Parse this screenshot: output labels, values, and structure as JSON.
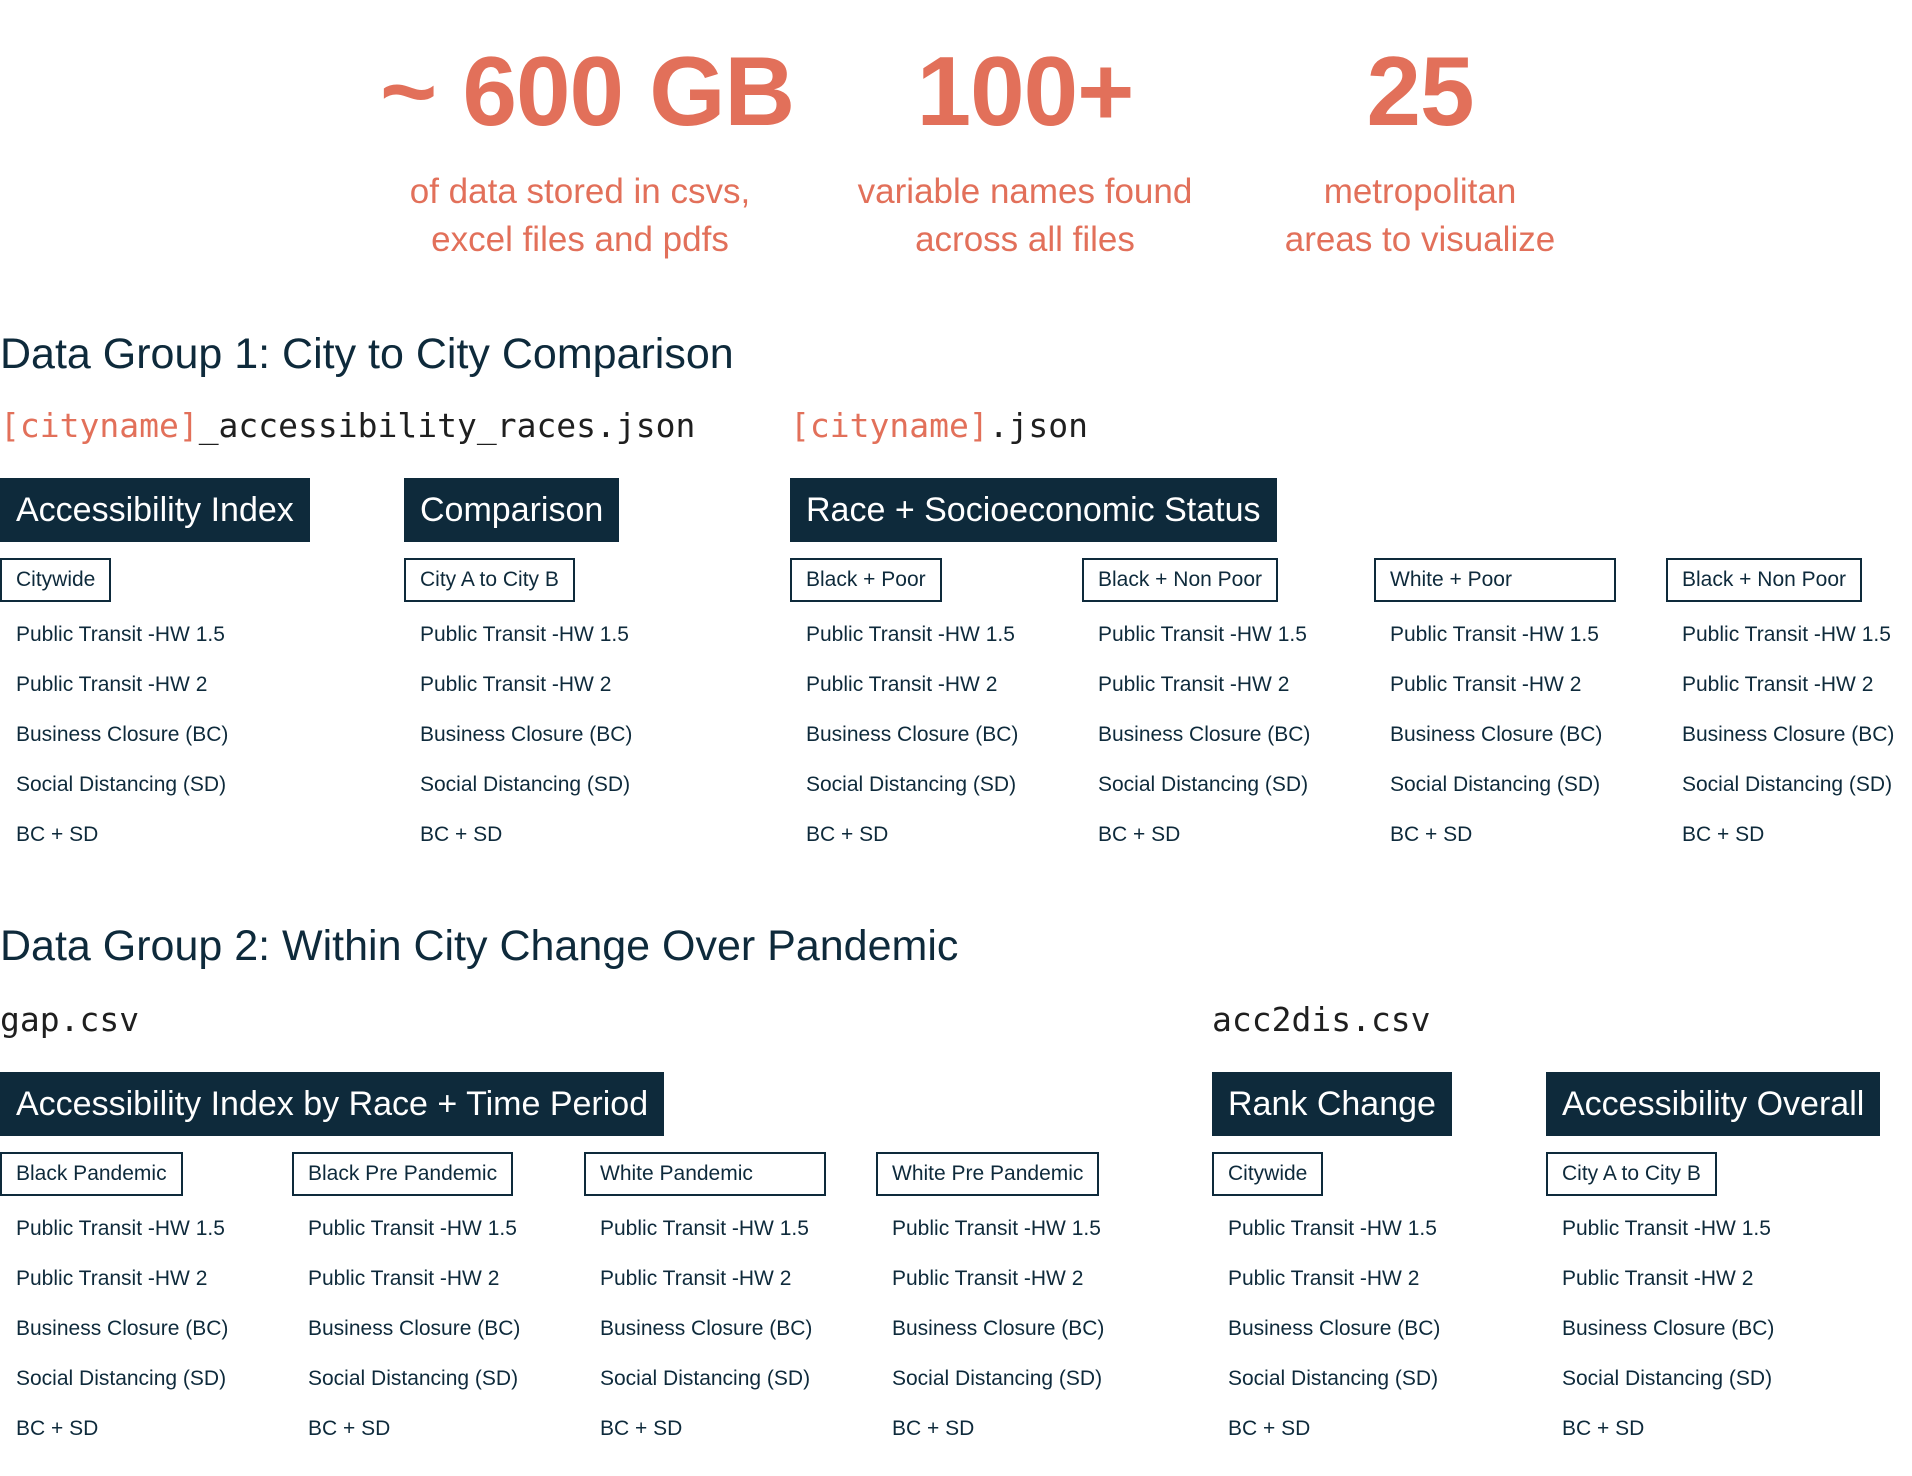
{
  "stats": [
    {
      "value": "~ 600 GB",
      "line1": "of data stored in csvs,",
      "line2": "excel files and pdfs"
    },
    {
      "value": "100+",
      "line1": "variable names found",
      "line2": "across all files"
    },
    {
      "value": "25",
      "line1": "metropolitan",
      "line2": "areas to visualize"
    }
  ],
  "group1": {
    "title": "Data Group 1: City to City Comparison",
    "file1": {
      "highlight": "[cityname]",
      "rest": "_accessibility_races.json"
    },
    "file2": {
      "highlight": "[cityname]",
      "rest": ".json"
    },
    "headers": [
      "Accessibility Index",
      "Comparison",
      "Race + Socioeconomic Status"
    ],
    "columns": [
      {
        "label": "Citywide",
        "items": [
          "Public Transit -HW 1.5",
          "Public Transit -HW 2",
          "Business Closure (BC)",
          "Social Distancing (SD)",
          "BC + SD"
        ]
      },
      {
        "label": "City A to City B",
        "items": [
          "Public Transit -HW 1.5",
          "Public Transit -HW 2",
          "Business Closure (BC)",
          "Social Distancing (SD)",
          "BC + SD"
        ]
      },
      {
        "label": "Black + Poor",
        "items": [
          "Public Transit -HW 1.5",
          "Public Transit -HW 2",
          "Business Closure (BC)",
          "Social Distancing (SD)",
          "BC + SD"
        ]
      },
      {
        "label": "Black + Non Poor",
        "items": [
          "Public Transit -HW 1.5",
          "Public Transit -HW 2",
          "Business Closure (BC)",
          "Social Distancing (SD)",
          "BC + SD"
        ]
      },
      {
        "label": "White + Poor",
        "items": [
          "Public Transit -HW 1.5",
          "Public Transit -HW 2",
          "Business Closure (BC)",
          "Social Distancing (SD)",
          "BC + SD"
        ]
      },
      {
        "label": "Black + Non Poor",
        "items": [
          "Public Transit -HW 1.5",
          "Public Transit -HW 2",
          "Business Closure (BC)",
          "Social Distancing (SD)",
          "BC + SD"
        ]
      }
    ]
  },
  "group2": {
    "title": "Data Group 2: Within City Change Over Pandemic",
    "file1": "gap.csv",
    "file2": "acc2dis.csv",
    "headers": [
      "Accessibility Index by Race + Time Period",
      "Rank Change",
      "Accessibility Overall"
    ],
    "columns": [
      {
        "label": "Black Pandemic",
        "items": [
          "Public Transit -HW 1.5",
          "Public Transit -HW 2",
          "Business Closure (BC)",
          "Social Distancing (SD)",
          "BC + SD"
        ]
      },
      {
        "label": "Black Pre Pandemic",
        "items": [
          "Public Transit -HW 1.5",
          "Public Transit -HW 2",
          "Business Closure (BC)",
          "Social Distancing (SD)",
          "BC + SD"
        ]
      },
      {
        "label": "White Pandemic",
        "items": [
          "Public Transit -HW 1.5",
          "Public Transit -HW 2",
          "Business Closure (BC)",
          "Social Distancing (SD)",
          "BC + SD"
        ]
      },
      {
        "label": "White Pre Pandemic",
        "items": [
          "Public Transit -HW 1.5",
          "Public Transit -HW 2",
          "Business Closure (BC)",
          "Social Distancing (SD)",
          "BC + SD"
        ]
      },
      {
        "label": "Citywide",
        "items": [
          "Public Transit -HW 1.5",
          "Public Transit -HW 2",
          "Business Closure (BC)",
          "Social Distancing (SD)",
          "BC + SD"
        ]
      },
      {
        "label": "City A to City B",
        "items": [
          "Public Transit -HW 1.5",
          "Public Transit -HW 2",
          "Business Closure (BC)",
          "Social Distancing (SD)",
          "BC + SD"
        ]
      }
    ]
  }
}
